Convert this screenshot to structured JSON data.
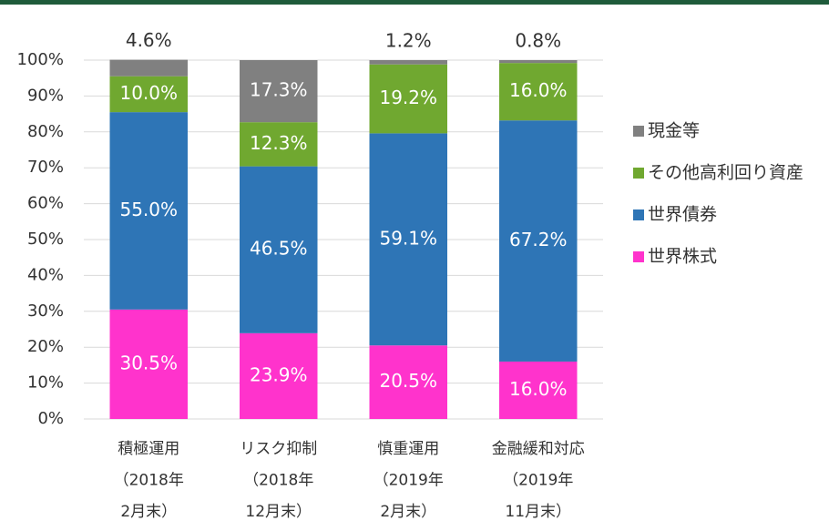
{
  "chart_data": {
    "type": "stacked_bar",
    "categories": [
      [
        "積極運用",
        "（2018年",
        "2月末）"
      ],
      [
        "リスク抑制",
        "（2018年",
        "12月末）"
      ],
      [
        "慎重運用",
        "（2019年",
        "2月末）"
      ],
      [
        "金融緩和対応",
        "（2019年",
        "11月末）"
      ]
    ],
    "series": [
      {
        "name": "世界株式",
        "color": "#ff33cc",
        "values": [
          30.5,
          23.9,
          20.5,
          16.0
        ],
        "value_labels": [
          "30.5%",
          "23.9%",
          "20.5%",
          "16.0%"
        ]
      },
      {
        "name": "世界債券",
        "color": "#2e75b6",
        "values": [
          55.0,
          46.5,
          59.1,
          67.2
        ],
        "value_labels": [
          "55.0%",
          "46.5%",
          "59.1%",
          "67.2%"
        ]
      },
      {
        "name": "その他高利回り資産",
        "color": "#70a830",
        "values": [
          10.0,
          12.3,
          19.2,
          16.0
        ],
        "value_labels": [
          "10.0%",
          "12.3%",
          "19.2%",
          "16.0%"
        ]
      },
      {
        "name": "現金等",
        "color": "#808080",
        "values": [
          4.6,
          17.3,
          1.2,
          0.8
        ],
        "value_labels": [
          "4.6%",
          "17.3%",
          "1.2%",
          "0.8%"
        ]
      }
    ],
    "ylim": [
      0,
      100
    ],
    "yticks": [
      {
        "value": 0,
        "label": "0%"
      },
      {
        "value": 10,
        "label": "10%"
      },
      {
        "value": 20,
        "label": "20%"
      },
      {
        "value": 30,
        "label": "30%"
      },
      {
        "value": 40,
        "label": "40%"
      },
      {
        "value": 50,
        "label": "50%"
      },
      {
        "value": 60,
        "label": "60%"
      },
      {
        "value": 70,
        "label": "70%"
      },
      {
        "value": 80,
        "label": "80%"
      },
      {
        "value": 90,
        "label": "90%"
      },
      {
        "value": 100,
        "label": "100%"
      }
    ],
    "grid": true,
    "legend": "right"
  }
}
